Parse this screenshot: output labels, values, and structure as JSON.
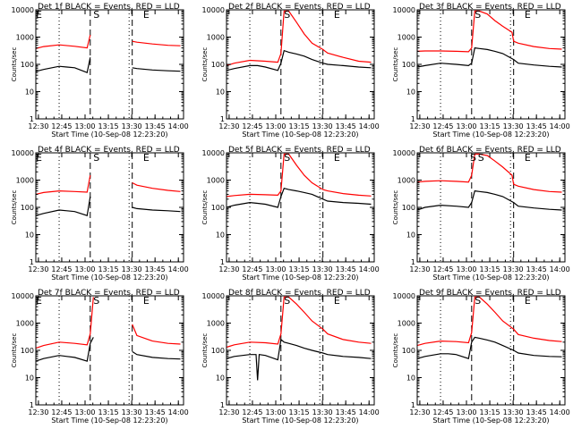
{
  "chart_data": [
    {
      "type": "line",
      "title": "Det 1f BLACK = Events, RED = LLD",
      "xlabel": "Start Time (10-Sep-08 12:23:20)",
      "ylabel": "Counts/sec",
      "xticks": [
        "12:30",
        "12:45",
        "13:00",
        "13:15",
        "13:30",
        "13:45",
        "14:00"
      ],
      "yticks": [
        "1",
        "10",
        "100",
        "1000",
        "10000"
      ],
      "xlim_min": [
        5,
        100
      ],
      "ylim_log": [
        1,
        10000
      ],
      "dotted_lines_min": [
        20,
        65
      ],
      "dashed_lines_min": [
        40,
        67
      ],
      "markers": [
        {
          "label": "E",
          "x_min": 7
        },
        {
          "label": "S",
          "x_min": 44
        },
        {
          "label": "E",
          "x_min": 76
        }
      ],
      "gaps_min": [
        [
          40,
          67
        ]
      ],
      "series": [
        {
          "color": "#ff0000",
          "x": [
            5,
            10,
            20,
            30,
            38,
            40,
            67,
            70,
            80,
            90,
            98
          ],
          "y": [
            380,
            450,
            520,
            460,
            400,
            1200,
            700,
            650,
            560,
            500,
            480
          ]
        },
        {
          "color": "#000000",
          "x": [
            5,
            10,
            20,
            25,
            30,
            38,
            40,
            67,
            70,
            80,
            90,
            98
          ],
          "y": [
            55,
            65,
            85,
            80,
            75,
            50,
            180,
            75,
            70,
            62,
            58,
            56
          ]
        }
      ]
    },
    {
      "type": "line",
      "title": "Det 2f BLACK = Events, RED = LLD",
      "xlabel": "Start Time (10-Sep-08 12:23:20)",
      "ylabel": "Counts/sec",
      "xticks": [
        "12:30",
        "12:45",
        "13:00",
        "13:15",
        "13:30",
        "13:45",
        "14:00"
      ],
      "yticks": [
        "1",
        "10",
        "100",
        "1000",
        "10000"
      ],
      "xlim_min": [
        5,
        100
      ],
      "ylim_log": [
        1,
        10000
      ],
      "dotted_lines_min": [
        20,
        65
      ],
      "dashed_lines_min": [
        40,
        67
      ],
      "markers": [
        {
          "label": "S",
          "x_min": 44
        },
        {
          "label": "E",
          "x_min": 76
        }
      ],
      "gaps_min": [],
      "series": [
        {
          "color": "#ff0000",
          "x": [
            5,
            10,
            20,
            30,
            38,
            40,
            42,
            45,
            50,
            55,
            60,
            67,
            70,
            80,
            90,
            98
          ],
          "y": [
            90,
            110,
            140,
            130,
            120,
            250,
            9000,
            9000,
            3500,
            1300,
            600,
            350,
            260,
            180,
            130,
            120
          ]
        },
        {
          "color": "#000000",
          "x": [
            5,
            10,
            20,
            25,
            30,
            38,
            40,
            42,
            45,
            50,
            55,
            60,
            67,
            70,
            80,
            90,
            98
          ],
          "y": [
            60,
            70,
            90,
            90,
            80,
            60,
            110,
            320,
            280,
            240,
            200,
            150,
            110,
            100,
            90,
            80,
            75
          ]
        }
      ]
    },
    {
      "type": "line",
      "title": "Det 3f BLACK = Events, RED = LLD",
      "xlabel": "Start Time (10-Sep-08 12:23:20)",
      "ylabel": "Counts/sec",
      "xticks": [
        "12:30",
        "12:45",
        "13:00",
        "13:15",
        "13:30",
        "13:45",
        "14:00"
      ],
      "yticks": [
        "1",
        "10",
        "100",
        "1000",
        "10000"
      ],
      "xlim_min": [
        5,
        100
      ],
      "ylim_log": [
        1,
        10000
      ],
      "dotted_lines_min": [
        20,
        65
      ],
      "dashed_lines_min": [
        40,
        67
      ],
      "markers": [
        {
          "label": "S",
          "x_min": 44
        },
        {
          "label": "E",
          "x_min": 76
        }
      ],
      "gaps_min": [],
      "series": [
        {
          "color": "#ff0000",
          "x": [
            5,
            10,
            20,
            30,
            38,
            40,
            42,
            45,
            50,
            55,
            60,
            66,
            67,
            70,
            80,
            90,
            98
          ],
          "y": [
            300,
            310,
            310,
            300,
            290,
            400,
            9000,
            9000,
            7000,
            4000,
            2500,
            1500,
            700,
            600,
            450,
            380,
            360
          ]
        },
        {
          "color": "#000000",
          "x": [
            5,
            10,
            20,
            30,
            38,
            40,
            42,
            45,
            50,
            55,
            60,
            67,
            70,
            80,
            90,
            98
          ],
          "y": [
            80,
            90,
            110,
            100,
            90,
            110,
            400,
            380,
            350,
            300,
            250,
            150,
            110,
            95,
            85,
            80
          ]
        }
      ]
    },
    {
      "type": "line",
      "title": "Det 4f BLACK = Events, RED = LLD",
      "xlabel": "Start Time (10-Sep-08 12:23:20)",
      "ylabel": "Counts/sec",
      "xticks": [
        "12:30",
        "12:45",
        "13:00",
        "13:15",
        "13:30",
        "13:45",
        "14:00"
      ],
      "yticks": [
        "1",
        "10",
        "100",
        "1000",
        "10000"
      ],
      "xlim_min": [
        5,
        100
      ],
      "ylim_log": [
        1,
        10000
      ],
      "dotted_lines_min": [
        20,
        65
      ],
      "dashed_lines_min": [
        40,
        67
      ],
      "markers": [
        {
          "label": "E",
          "x_min": 7
        },
        {
          "label": "S",
          "x_min": 44
        },
        {
          "label": "E",
          "x_min": 76
        }
      ],
      "gaps_min": [
        [
          40,
          67
        ]
      ],
      "series": [
        {
          "color": "#ff0000",
          "x": [
            5,
            10,
            20,
            30,
            38,
            40,
            67,
            70,
            80,
            90,
            98
          ],
          "y": [
            300,
            350,
            400,
            380,
            360,
            1500,
            800,
            650,
            500,
            420,
            380
          ]
        },
        {
          "color": "#000000",
          "x": [
            5,
            10,
            20,
            25,
            30,
            38,
            40,
            67,
            70,
            80,
            90,
            98
          ],
          "y": [
            50,
            60,
            80,
            75,
            70,
            50,
            250,
            100,
            90,
            80,
            75,
            70
          ]
        }
      ]
    },
    {
      "type": "line",
      "title": "Det 5f BLACK = Events, RED = LLD",
      "xlabel": "Start Time (10-Sep-08 12:23:20)",
      "ylabel": "Counts/sec",
      "xticks": [
        "12:30",
        "12:45",
        "13:00",
        "13:15",
        "13:30",
        "13:45",
        "14:00"
      ],
      "yticks": [
        "1",
        "10",
        "100",
        "1000",
        "10000"
      ],
      "xlim_min": [
        5,
        100
      ],
      "ylim_log": [
        1,
        10000
      ],
      "dotted_lines_min": [
        20,
        65
      ],
      "dashed_lines_min": [
        40,
        67
      ],
      "markers": [
        {
          "label": "S",
          "x_min": 44
        },
        {
          "label": "E",
          "x_min": 76
        }
      ],
      "gaps_min": [],
      "series": [
        {
          "color": "#ff0000",
          "x": [
            5,
            10,
            20,
            30,
            38,
            40,
            42,
            45,
            50,
            55,
            60,
            67,
            70,
            80,
            90,
            98
          ],
          "y": [
            250,
            270,
            300,
            290,
            280,
            400,
            9000,
            9000,
            3500,
            1500,
            800,
            450,
            400,
            320,
            280,
            260
          ]
        },
        {
          "color": "#000000",
          "x": [
            5,
            10,
            20,
            25,
            30,
            38,
            40,
            42,
            45,
            50,
            55,
            60,
            67,
            70,
            80,
            90,
            98
          ],
          "y": [
            100,
            120,
            150,
            140,
            130,
            100,
            250,
            500,
            450,
            400,
            350,
            300,
            200,
            170,
            150,
            140,
            130
          ]
        }
      ]
    },
    {
      "type": "line",
      "title": "Det 6f BLACK = Events, RED = LLD",
      "xlabel": "Start Time (10-Sep-08 12:23:20)",
      "ylabel": "Counts/sec",
      "xticks": [
        "12:30",
        "12:45",
        "13:00",
        "13:15",
        "13:30",
        "13:45",
        "14:00"
      ],
      "yticks": [
        "1",
        "10",
        "100",
        "1000",
        "10000"
      ],
      "xlim_min": [
        5,
        100
      ],
      "ylim_log": [
        1,
        10000
      ],
      "dotted_lines_min": [
        20,
        65
      ],
      "dashed_lines_min": [
        40,
        67
      ],
      "markers": [
        {
          "label": "S",
          "x_min": 41
        },
        {
          "label": "S",
          "x_min": 46
        },
        {
          "label": "E",
          "x_min": 76
        }
      ],
      "gaps_min": [],
      "series": [
        {
          "color": "#ff0000",
          "x": [
            5,
            10,
            20,
            30,
            38,
            40,
            42,
            45,
            50,
            55,
            60,
            66,
            67,
            70,
            80,
            90,
            98
          ],
          "y": [
            850,
            900,
            950,
            900,
            850,
            1500,
            9000,
            9000,
            8000,
            5000,
            3000,
            1500,
            700,
            600,
            450,
            380,
            360
          ]
        },
        {
          "color": "#000000",
          "x": [
            5,
            10,
            20,
            30,
            38,
            40,
            42,
            45,
            50,
            55,
            60,
            67,
            70,
            80,
            90,
            98
          ],
          "y": [
            80,
            100,
            120,
            110,
            100,
            150,
            400,
            380,
            350,
            300,
            250,
            150,
            110,
            95,
            85,
            80
          ]
        }
      ]
    },
    {
      "type": "line",
      "title": "Det 7f BLACK = Events, RED = LLD",
      "xlabel": "Start Time (10-Sep-08 12:23:20)",
      "ylabel": "Counts/sec",
      "xticks": [
        "12:30",
        "12:45",
        "13:00",
        "13:15",
        "13:30",
        "13:45",
        "14:00"
      ],
      "yticks": [
        "1",
        "10",
        "100",
        "1000",
        "10000"
      ],
      "xlim_min": [
        5,
        100
      ],
      "ylim_log": [
        1,
        10000
      ],
      "dotted_lines_min": [
        20,
        65
      ],
      "dashed_lines_min": [
        40,
        67
      ],
      "markers": [
        {
          "label": "E",
          "x_min": 7
        },
        {
          "label": "S",
          "x_min": 44
        },
        {
          "label": "E",
          "x_min": 76
        }
      ],
      "gaps_min": [
        [
          42,
          67
        ]
      ],
      "series": [
        {
          "color": "#ff0000",
          "x": [
            5,
            10,
            20,
            30,
            38,
            40,
            42,
            67,
            70,
            80,
            90,
            98
          ],
          "y": [
            120,
            150,
            200,
            180,
            160,
            400,
            9000,
            900,
            350,
            220,
            180,
            170
          ]
        },
        {
          "color": "#000000",
          "x": [
            5,
            10,
            20,
            25,
            30,
            38,
            40,
            42,
            67,
            70,
            80,
            90,
            98
          ],
          "y": [
            40,
            50,
            65,
            60,
            55,
            40,
            180,
            300,
            90,
            70,
            55,
            50,
            48
          ]
        }
      ]
    },
    {
      "type": "line",
      "title": "Det 8f BLACK = Events, RED = LLD",
      "xlabel": "Start Time (10-Sep-08 12:23:20)",
      "ylabel": "Counts/sec",
      "xticks": [
        "12:30",
        "12:45",
        "13:00",
        "13:15",
        "13:30",
        "13:45",
        "14:00"
      ],
      "yticks": [
        "1",
        "10",
        "100",
        "1000",
        "10000"
      ],
      "xlim_min": [
        5,
        100
      ],
      "ylim_log": [
        1,
        10000
      ],
      "dotted_lines_min": [
        20,
        65
      ],
      "dashed_lines_min": [
        40,
        67
      ],
      "markers": [
        {
          "label": "S",
          "x_min": 44
        },
        {
          "label": "E",
          "x_min": 76
        }
      ],
      "gaps_min": [],
      "series": [
        {
          "color": "#ff0000",
          "x": [
            5,
            10,
            20,
            30,
            38,
            40,
            42,
            45,
            50,
            55,
            60,
            67,
            70,
            80,
            90,
            98
          ],
          "y": [
            130,
            160,
            200,
            190,
            170,
            400,
            9000,
            9000,
            5000,
            2500,
            1200,
            600,
            400,
            250,
            200,
            180
          ]
        },
        {
          "color": "#000000",
          "x": [
            5,
            10,
            20,
            24,
            25,
            26,
            30,
            38,
            40,
            42,
            45,
            50,
            55,
            60,
            67,
            70,
            80,
            90,
            98
          ],
          "y": [
            50,
            60,
            70,
            70,
            8,
            70,
            65,
            45,
            250,
            200,
            180,
            150,
            120,
            100,
            80,
            70,
            60,
            55,
            50
          ]
        }
      ]
    },
    {
      "type": "line",
      "title": "Det 9f BLACK = Events, RED = LLD",
      "xlabel": "Start Time (10-Sep-08 12:23:20)",
      "ylabel": "Counts/sec",
      "xticks": [
        "12:30",
        "12:45",
        "13:00",
        "13:15",
        "13:30",
        "13:45",
        "14:00"
      ],
      "yticks": [
        "1",
        "10",
        "100",
        "1000",
        "10000"
      ],
      "xlim_min": [
        5,
        100
      ],
      "ylim_log": [
        1,
        10000
      ],
      "dotted_lines_min": [
        20,
        65
      ],
      "dashed_lines_min": [
        40,
        67
      ],
      "markers": [
        {
          "label": "S",
          "x_min": 44
        },
        {
          "label": "E",
          "x_min": 76
        }
      ],
      "gaps_min": [],
      "series": [
        {
          "color": "#ff0000",
          "x": [
            5,
            10,
            20,
            30,
            38,
            40,
            42,
            45,
            50,
            55,
            60,
            67,
            70,
            80,
            90,
            98
          ],
          "y": [
            150,
            180,
            220,
            210,
            190,
            450,
            9000,
            9000,
            5000,
            2500,
            1200,
            600,
            380,
            280,
            230,
            210
          ]
        },
        {
          "color": "#000000",
          "x": [
            5,
            10,
            20,
            25,
            30,
            38,
            40,
            42,
            45,
            50,
            55,
            60,
            67,
            70,
            80,
            90,
            98
          ],
          "y": [
            50,
            60,
            75,
            75,
            70,
            50,
            200,
            300,
            280,
            240,
            200,
            150,
            100,
            80,
            65,
            60,
            58
          ]
        }
      ]
    }
  ]
}
